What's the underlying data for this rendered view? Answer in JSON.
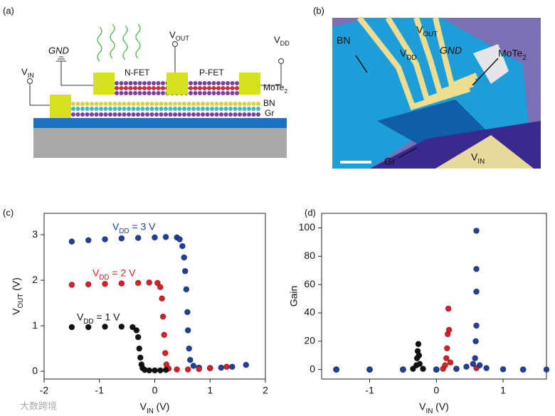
{
  "panel_a": {
    "label": "(a)",
    "gnd": "GND",
    "vout": "VOUT",
    "vdd": "VDD",
    "vin": "VIN",
    "nfet": "N-FET",
    "pfet": "P-FET",
    "mote2": "MoTe2",
    "bn": "BN",
    "gr": "Gr"
  },
  "panel_b": {
    "label": "(b)",
    "bn": "BN",
    "vdd": "VDD",
    "vout": "VOUT",
    "gnd": "GND",
    "mote2": "MoTe2",
    "gr": "Gr",
    "vin": "VIN"
  },
  "watermark": "大数跨境",
  "chart_data": [
    {
      "type": "scatter",
      "panel_label": "(c)",
      "x_label": "VIN (V)",
      "y_label": "VOUT (V)",
      "xlim": [
        -2,
        2
      ],
      "ylim": [
        -0.17,
        3.47
      ],
      "xticks": [
        -2,
        -1,
        0,
        1,
        2
      ],
      "yticks": [
        0,
        1,
        2,
        3
      ],
      "series": [
        {
          "name": "VDD = 3 V",
          "color": "#1f3f99",
          "x": [
            -1.5,
            -1.2,
            -0.9,
            -0.6,
            -0.3,
            0,
            0.2,
            0.4,
            0.45,
            0.5,
            0.53,
            0.55,
            0.57,
            0.59,
            0.6,
            0.62,
            0.64,
            0.7,
            0.8,
            1.0,
            1.2,
            1.4,
            1.65
          ],
          "values": [
            2.85,
            2.88,
            2.9,
            2.92,
            2.93,
            2.94,
            2.95,
            2.94,
            2.9,
            2.75,
            2.5,
            2.2,
            1.8,
            1.3,
            0.9,
            0.5,
            0.25,
            0.12,
            0.08,
            0.07,
            0.08,
            0.1,
            0.14
          ]
        },
        {
          "name": "VDD = 2 V",
          "color": "#d42027",
          "x": [
            -1.5,
            -1.2,
            -0.9,
            -0.6,
            -0.3,
            -0.1,
            0.05,
            0.1,
            0.13,
            0.15,
            0.17,
            0.19,
            0.21,
            0.25,
            0.4,
            0.6,
            0.8,
            1.0,
            1.3
          ],
          "values": [
            1.9,
            1.91,
            1.92,
            1.93,
            1.94,
            1.95,
            1.94,
            1.85,
            1.6,
            1.2,
            0.8,
            0.4,
            0.15,
            0.06,
            0.04,
            0.04,
            0.05,
            0.07,
            0.1
          ]
        },
        {
          "name": "VDD = 1 V",
          "color": "#111111",
          "x": [
            -1.5,
            -1.2,
            -0.9,
            -0.6,
            -0.4,
            -0.33,
            -0.3,
            -0.28,
            -0.26,
            -0.24,
            -0.22,
            -0.18,
            -0.1,
            0,
            0.1,
            0.2
          ],
          "values": [
            0.97,
            0.97,
            0.98,
            0.98,
            0.97,
            0.9,
            0.75,
            0.5,
            0.3,
            0.15,
            0.07,
            0.03,
            0.02,
            0.02,
            0.02,
            0.03
          ]
        }
      ]
    },
    {
      "type": "scatter",
      "panel_label": "(d)",
      "x_label": "VIN (V)",
      "y_label": "Gain",
      "xlim": [
        -1.72,
        1.65
      ],
      "ylim": [
        -6.7,
        110.3
      ],
      "xticks": [
        -1,
        0,
        1
      ],
      "yticks": [
        0,
        20,
        40,
        60,
        80,
        100
      ],
      "series": [
        {
          "color": "#111111",
          "x": [
            -1.5,
            -1.0,
            -0.5,
            -0.35,
            -0.3,
            -0.29,
            -0.28,
            -0.27,
            -0.26,
            -0.25,
            -0.2,
            0
          ],
          "values": [
            0,
            0,
            0,
            0.5,
            3,
            8,
            13,
            18,
            10,
            4,
            0.5,
            0
          ]
        },
        {
          "color": "#d42027",
          "x": [
            -1.5,
            -1,
            -0.5,
            0,
            0.1,
            0.13,
            0.15,
            0.16,
            0.17,
            0.18,
            0.19,
            0.21,
            0.3,
            0.6,
            1.3
          ],
          "values": [
            0,
            0,
            0,
            0,
            0.5,
            3,
            8,
            15,
            25,
            43,
            28,
            5,
            0.5,
            1,
            0
          ]
        },
        {
          "color": "#1f3f99",
          "x": [
            -1.5,
            -1,
            -0.5,
            0,
            0.3,
            0.45,
            0.55,
            0.58,
            0.59,
            0.6,
            0.6,
            0.6,
            0.6,
            0.65,
            0.75,
            1.0,
            1.3,
            1.65
          ],
          "values": [
            0,
            0,
            0,
            0,
            0.5,
            2,
            4,
            8,
            20,
            31,
            55,
            71,
            98,
            3,
            1,
            0.2,
            0,
            0
          ]
        }
      ]
    }
  ]
}
